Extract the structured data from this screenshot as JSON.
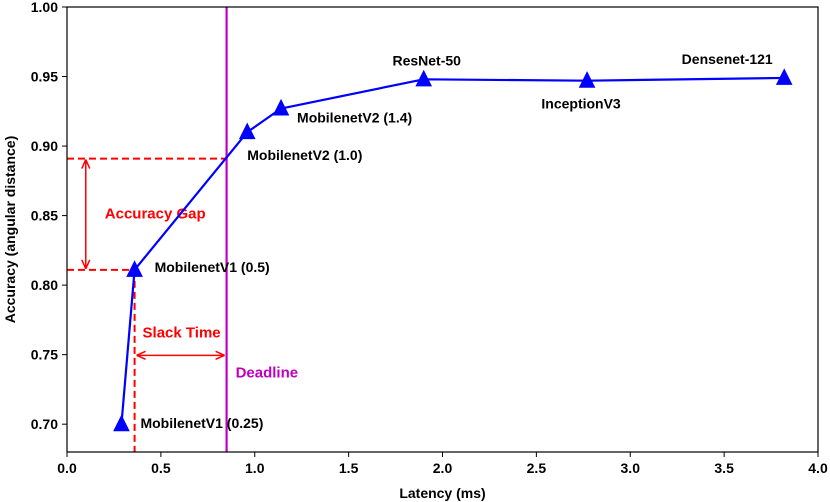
{
  "chart_data": {
    "type": "line",
    "title": "",
    "xlabel": "Latency (ms)",
    "ylabel": "Accuracy (angular distance)",
    "xlim": [
      0.0,
      4.0
    ],
    "ylim": [
      0.68,
      1.0
    ],
    "xticks": [
      0.0,
      0.5,
      1.0,
      1.5,
      2.0,
      2.5,
      3.0,
      3.5,
      4.0
    ],
    "xtick_labels": [
      "0.0",
      "0.5",
      "1.0",
      "1.5",
      "2.0",
      "2.5",
      "3.0",
      "3.5",
      "4.0"
    ],
    "yticks": [
      0.7,
      0.75,
      0.8,
      0.85,
      0.9,
      0.95,
      1.0
    ],
    "ytick_labels": [
      "0.70",
      "0.75",
      "0.80",
      "0.85",
      "0.90",
      "0.95",
      "1.00"
    ],
    "series": [
      {
        "name": "models",
        "color": "#0000ff",
        "marker": "triangle",
        "points": [
          {
            "label": "MobilenetV1 (0.25)",
            "x": 0.29,
            "y": 0.7
          },
          {
            "label": "MobilenetV1 (0.5)",
            "x": 0.36,
            "y": 0.811
          },
          {
            "label": "MobilenetV2 (1.0)",
            "x": 0.96,
            "y": 0.91
          },
          {
            "label": "MobilenetV2 (1.4)",
            "x": 1.14,
            "y": 0.927
          },
          {
            "label": "ResNet-50",
            "x": 1.9,
            "y": 0.948
          },
          {
            "label": "InceptionV3",
            "x": 2.77,
            "y": 0.947
          },
          {
            "label": "Densenet-121",
            "x": 3.82,
            "y": 0.949
          }
        ]
      }
    ],
    "deadline": {
      "label": "Deadline",
      "x": 0.85,
      "color": "#c000c0"
    },
    "accuracy_gap": {
      "label": "Accuracy Gap",
      "from": 0.811,
      "to": 0.891,
      "color": "#ff0000"
    },
    "slack_time": {
      "label": "Slack Time",
      "from": 0.36,
      "to": 0.85,
      "color": "#ff0000"
    }
  }
}
